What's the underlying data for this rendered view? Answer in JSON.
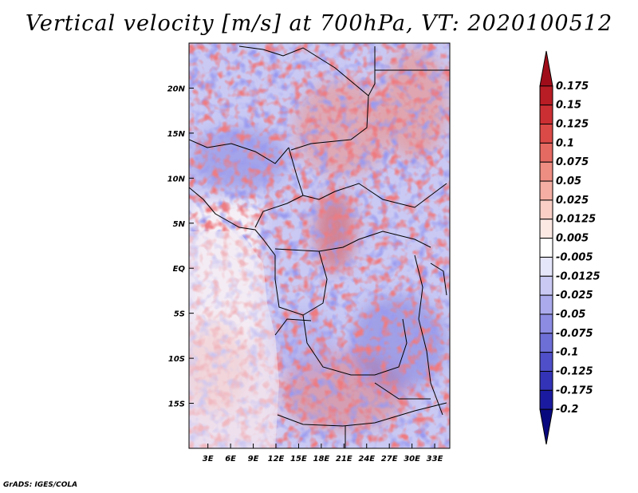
{
  "title": "Vertical velocity [m/s] at 700hPa, VT: 2020100512",
  "credit": "GrADS: IGES/COLA",
  "chart_data": {
    "type": "heatmap",
    "title": "Vertical velocity [m/s] at 700hPa, VT: 2020100512",
    "variable": "Vertical velocity",
    "units": "m/s",
    "level": "700hPa",
    "valid_time": "2020100512",
    "xlim_deg": [
      0.5,
      35
    ],
    "ylim_deg": [
      -20,
      25
    ],
    "x_ticks": [
      {
        "value": 3,
        "label": "3E"
      },
      {
        "value": 6,
        "label": "6E"
      },
      {
        "value": 9,
        "label": "9E"
      },
      {
        "value": 12,
        "label": "12E"
      },
      {
        "value": 15,
        "label": "15E"
      },
      {
        "value": 18,
        "label": "18E"
      },
      {
        "value": 21,
        "label": "21E"
      },
      {
        "value": 24,
        "label": "24E"
      },
      {
        "value": 27,
        "label": "27E"
      },
      {
        "value": 30,
        "label": "30E"
      },
      {
        "value": 33,
        "label": "33E"
      }
    ],
    "y_ticks": [
      {
        "value": 20,
        "label": "20N"
      },
      {
        "value": 15,
        "label": "15N"
      },
      {
        "value": 10,
        "label": "10N"
      },
      {
        "value": 5,
        "label": "5N"
      },
      {
        "value": 0,
        "label": "EQ"
      },
      {
        "value": -5,
        "label": "5S"
      },
      {
        "value": -10,
        "label": "10S"
      },
      {
        "value": -15,
        "label": "15S"
      }
    ],
    "colorbar": {
      "labels": [
        "0.175",
        "0.15",
        "0.125",
        "0.1",
        "0.075",
        "0.05",
        "0.025",
        "0.0125",
        "0.005",
        "-0.005",
        "-0.0125",
        "-0.025",
        "-0.05",
        "-0.075",
        "-0.1",
        "-0.125",
        "-0.175",
        "-0.2"
      ],
      "colors": [
        "#a00d1a",
        "#b81c24",
        "#cc2f33",
        "#db4a47",
        "#e56a62",
        "#ee8d82",
        "#f4aea3",
        "#f9cfc6",
        "#fde9e4",
        "#ffffff",
        "#e6e6fb",
        "#c9c9f4",
        "#aaaaec",
        "#8c8ce3",
        "#6e6ed7",
        "#4f4fc9",
        "#3333b8",
        "#1a1aa0",
        "#08087e"
      ]
    }
  }
}
